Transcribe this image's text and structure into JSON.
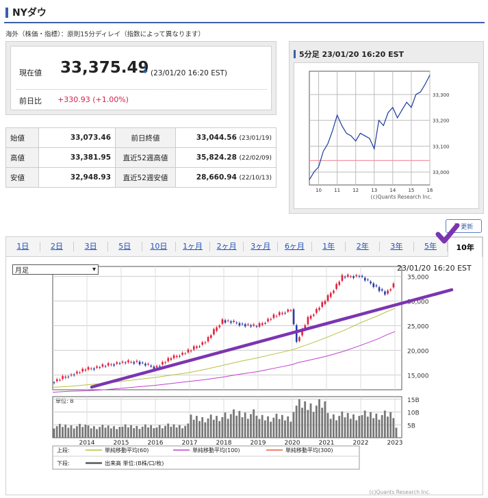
{
  "page": {
    "title": "NYダウ",
    "note": "海外（株価・指標）：原則15分ディレイ（指数によって異なります）"
  },
  "quote": {
    "price_label": "現在値",
    "price": "33,375.49",
    "arrow": "↓",
    "time": "(23/01/20 16:20 EST)",
    "change_label": "前日比",
    "change": "+330.93 (+1.00%)",
    "change_color": "#d1224b"
  },
  "ohlc": [
    {
      "k1": "始値",
      "v1": "33,073.46",
      "k2": "前日終値",
      "v2": "33,044.56",
      "d2": "(23/01/19)"
    },
    {
      "k1": "高値",
      "v1": "33,381.95",
      "k2": "直近52週高値",
      "v2": "35,824.28",
      "d2": "(22/02/09)"
    },
    {
      "k1": "安値",
      "v1": "32,948.93",
      "k2": "直近52週安値",
      "v2": "28,660.94",
      "d2": "(22/10/13)"
    }
  ],
  "mini": {
    "title": "5分足 23/01/20 16:20 EST",
    "yticks": [
      "33,300",
      "33,200",
      "33,100",
      "33,000"
    ],
    "xticks": [
      "10",
      "11",
      "12",
      "13",
      "14",
      "15",
      "16"
    ],
    "credit": "(c)Quants Research Inc."
  },
  "tabs": [
    "1日",
    "2日",
    "3日",
    "5日",
    "10日",
    "1ヶ月",
    "2ヶ月",
    "3ヶ月",
    "6ヶ月",
    "1年",
    "2年",
    "3年",
    "5年",
    "10年"
  ],
  "refresh_label": "更新",
  "large": {
    "select_value": "月足",
    "time": "23/01/20 16:20 EST",
    "price_yticks": [
      "35,000",
      "30,000",
      "25,000",
      "20,000",
      "15,000"
    ],
    "vol_unit": "単位: B",
    "vol_yticks": [
      "15B",
      "10B",
      "5B"
    ],
    "xticks": [
      "2014",
      "2015",
      "2016",
      "2017",
      "2018",
      "2019",
      "2020",
      "2021",
      "2022",
      "2023"
    ],
    "legend_upper_label": "上段:",
    "legend_lower_label": "下段:",
    "ma60": "単純移動平均(60)",
    "ma100": "単純移動平均(100)",
    "ma300": "単純移動平均(300)",
    "volume_legend": "出来高 単位:(B株/口/枚)",
    "credit": "(c)Quants Research Inc."
  },
  "colors": {
    "accent": "#3a5fa8",
    "up": "#e0203a",
    "down": "#2a3aa8",
    "ma60": "#b8c040",
    "ma100": "#c040d0",
    "trendline": "#7b35b0"
  },
  "chart_data": [
    {
      "type": "line",
      "title": "5分足 23/01/20 16:20 EST",
      "x": [
        9.5,
        9.75,
        10,
        10.25,
        10.5,
        10.75,
        11,
        11.25,
        11.5,
        11.75,
        12,
        12.25,
        12.5,
        12.75,
        13,
        13.25,
        13.5,
        13.75,
        14,
        14.25,
        14.5,
        14.75,
        15,
        15.25,
        15.5,
        15.75,
        16
      ],
      "values": [
        32970,
        33000,
        33020,
        33080,
        33110,
        33160,
        33220,
        33180,
        33150,
        33140,
        33120,
        33150,
        33140,
        33130,
        33090,
        33200,
        33180,
        33230,
        33250,
        33210,
        33240,
        33270,
        33250,
        33300,
        33310,
        33340,
        33375
      ],
      "reference_line": 33044.56,
      "ylim": [
        32950,
        33390
      ],
      "xlim": [
        9.5,
        16
      ]
    },
    {
      "type": "line",
      "title": "月足",
      "x": [
        "2013-01",
        "2013-07",
        "2014-01",
        "2014-07",
        "2015-01",
        "2015-07",
        "2016-01",
        "2016-07",
        "2017-01",
        "2017-07",
        "2018-01",
        "2018-07",
        "2019-01",
        "2019-07",
        "2020-01",
        "2020-03",
        "2020-07",
        "2021-01",
        "2021-07",
        "2022-01",
        "2022-07",
        "2022-10",
        "2023-01"
      ],
      "series": [
        {
          "name": "",
          "values": [
            13500,
            14900,
            16100,
            16800,
            17500,
            17700,
            16500,
            18400,
            19800,
            21800,
            26100,
            25400,
            24800,
            26900,
            28300,
            21900,
            26400,
            30000,
            34900,
            35100,
            32800,
            31500,
            33375
          ]
        },
        {
          "name": "単純移動平均(60)",
          "values": [
            12500,
            12700,
            13000,
            13300,
            13700,
            14100,
            14500,
            15000,
            15500,
            16200,
            17000,
            17800,
            18500,
            19300,
            20100,
            20500,
            21300,
            22600,
            24000,
            25600,
            27000,
            27800,
            28500
          ]
        },
        {
          "name": "単純移動平均(100)",
          "values": [
            11500,
            11700,
            11800,
            12000,
            12300,
            12600,
            12900,
            13300,
            13700,
            14100,
            14600,
            15200,
            15700,
            16400,
            17100,
            17500,
            18000,
            18800,
            19800,
            21000,
            22300,
            23100,
            23800
          ]
        }
      ],
      "ylim": [
        12000,
        37000
      ]
    },
    {
      "type": "bar",
      "title": "出来高",
      "x": [
        "2013",
        "2014",
        "2015",
        "2016",
        "2017",
        "2018",
        "2019",
        "2020",
        "2021",
        "2022",
        "2023"
      ],
      "values": [
        4.5,
        4.2,
        4.3,
        4.6,
        7.5,
        9.2,
        7.8,
        12.5,
        8.5,
        8.8,
        4.5
      ],
      "ylim": [
        0,
        16
      ]
    }
  ]
}
